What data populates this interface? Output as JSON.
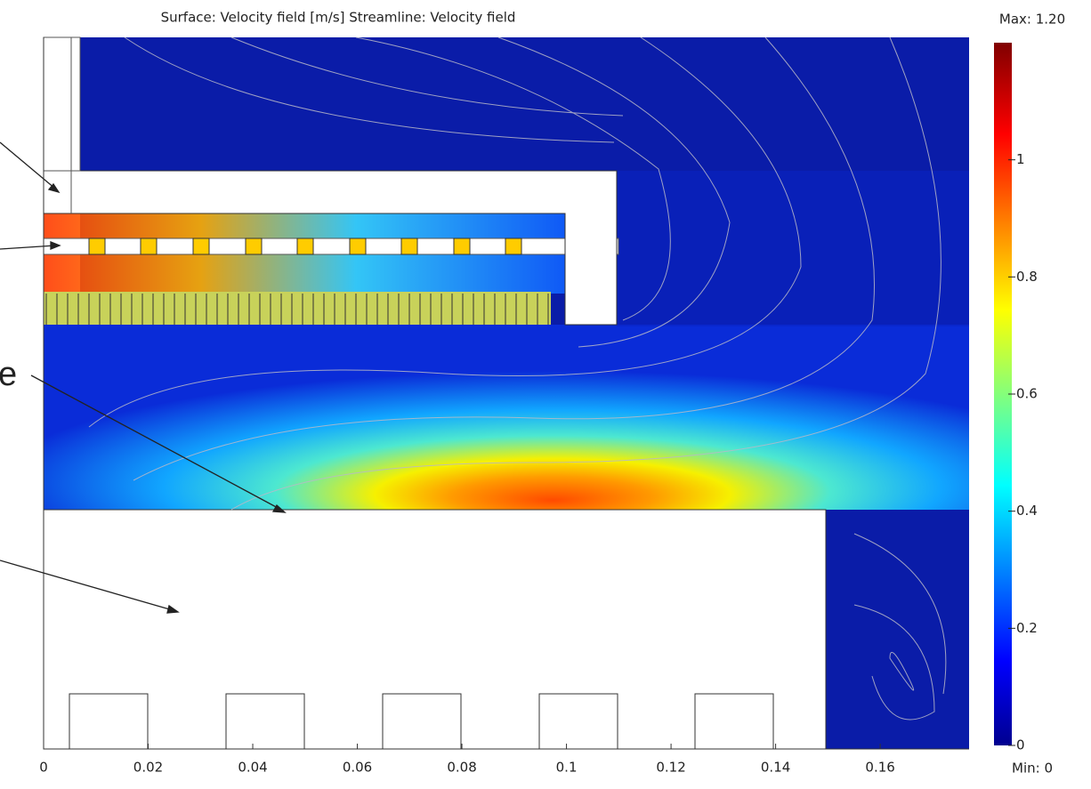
{
  "chart_data": {
    "type": "field",
    "title": "Surface: Velocity field [m/s]   Streamline: Velocity field",
    "xlim": [
      0,
      0.177
    ],
    "xticks": [
      0,
      0.02,
      0.04,
      0.06,
      0.08,
      0.1,
      0.12,
      0.14,
      0.16
    ],
    "clim": [
      0,
      1.2
    ],
    "cticks": [
      0,
      0.2,
      0.4,
      0.6,
      0.8,
      1
    ],
    "max_label": "Max: 1.20",
    "min_label": "Min: 0",
    "annotation": "e"
  }
}
